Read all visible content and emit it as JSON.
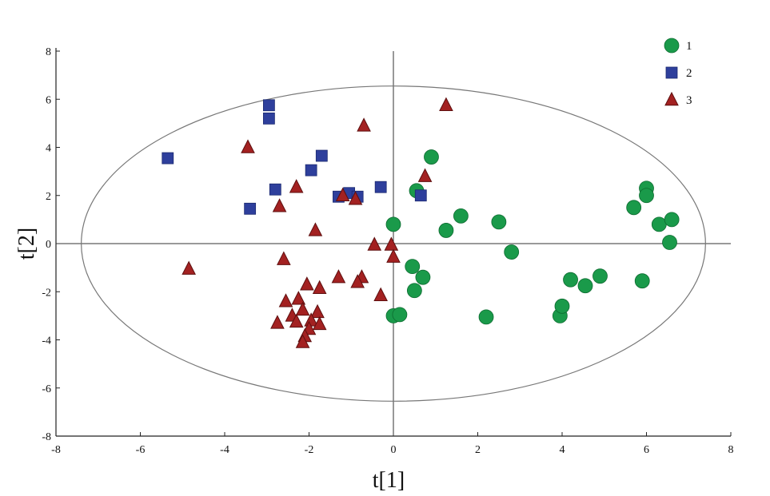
{
  "chart_data": {
    "type": "scatter",
    "title": "",
    "xlabel": "t[1]",
    "ylabel": "t[2]",
    "xlim": [
      -8,
      8
    ],
    "ylim": [
      -8,
      8
    ],
    "xticks": [
      "-8",
      "-6",
      "-4",
      "-2",
      "0",
      "2",
      "4",
      "6",
      "8"
    ],
    "yticks": [
      "-8",
      "-6",
      "-4",
      "-2",
      "0",
      "2",
      "4",
      "6",
      "8"
    ],
    "grid": false,
    "legend_position": "top-right",
    "ellipse": {
      "cx": 0,
      "cy": 0,
      "rx": 7.4,
      "ry": 6.55
    },
    "series": [
      {
        "name": "1",
        "marker": "circle",
        "color": "#1a9a4a",
        "points": [
          [
            0.0,
            0.8
          ],
          [
            0.9,
            3.6
          ],
          [
            0.55,
            2.2
          ],
          [
            1.25,
            0.55
          ],
          [
            1.6,
            1.15
          ],
          [
            2.5,
            0.9
          ],
          [
            2.8,
            -0.35
          ],
          [
            0.45,
            -0.95
          ],
          [
            0.7,
            -1.4
          ],
          [
            0.5,
            -1.95
          ],
          [
            0.0,
            -3.0
          ],
          [
            0.15,
            -2.95
          ],
          [
            2.2,
            -3.05
          ],
          [
            3.95,
            -3.0
          ],
          [
            4.0,
            -2.6
          ],
          [
            4.2,
            -1.5
          ],
          [
            4.55,
            -1.75
          ],
          [
            4.9,
            -1.35
          ],
          [
            5.9,
            -1.55
          ],
          [
            5.7,
            1.5
          ],
          [
            6.0,
            2.3
          ],
          [
            6.0,
            2.0
          ],
          [
            6.3,
            0.8
          ],
          [
            6.6,
            1.0
          ],
          [
            6.55,
            0.05
          ]
        ]
      },
      {
        "name": "2",
        "marker": "square",
        "color": "#2e3f9c",
        "points": [
          [
            -5.35,
            3.55
          ],
          [
            -2.95,
            5.75
          ],
          [
            -2.95,
            5.2
          ],
          [
            -2.8,
            2.25
          ],
          [
            -3.4,
            1.45
          ],
          [
            -1.7,
            3.65
          ],
          [
            -1.95,
            3.05
          ],
          [
            -1.3,
            1.95
          ],
          [
            -1.05,
            2.1
          ],
          [
            -0.85,
            1.95
          ],
          [
            -0.3,
            2.35
          ],
          [
            0.65,
            2.0
          ]
        ]
      },
      {
        "name": "3",
        "marker": "triangle",
        "color": "#a32121",
        "points": [
          [
            1.25,
            5.75
          ],
          [
            -0.7,
            4.9
          ],
          [
            -3.45,
            4.0
          ],
          [
            0.75,
            2.8
          ],
          [
            -2.3,
            2.35
          ],
          [
            -1.2,
            2.0
          ],
          [
            -0.9,
            1.85
          ],
          [
            -2.7,
            1.55
          ],
          [
            -1.85,
            0.55
          ],
          [
            -0.45,
            -0.05
          ],
          [
            -0.05,
            -0.05
          ],
          [
            0.0,
            -0.55
          ],
          [
            -2.6,
            -0.65
          ],
          [
            -4.85,
            -1.05
          ],
          [
            -1.3,
            -1.4
          ],
          [
            -0.75,
            -1.4
          ],
          [
            -0.85,
            -1.6
          ],
          [
            -2.05,
            -1.7
          ],
          [
            -1.75,
            -1.85
          ],
          [
            -0.3,
            -2.15
          ],
          [
            -2.55,
            -2.4
          ],
          [
            -2.25,
            -2.3
          ],
          [
            -2.15,
            -2.75
          ],
          [
            -1.8,
            -2.85
          ],
          [
            -2.4,
            -3.0
          ],
          [
            -2.75,
            -3.3
          ],
          [
            -2.3,
            -3.25
          ],
          [
            -1.95,
            -3.2
          ],
          [
            -1.75,
            -3.35
          ],
          [
            -2.0,
            -3.55
          ],
          [
            -2.1,
            -3.85
          ],
          [
            -2.15,
            -4.1
          ]
        ]
      }
    ]
  }
}
